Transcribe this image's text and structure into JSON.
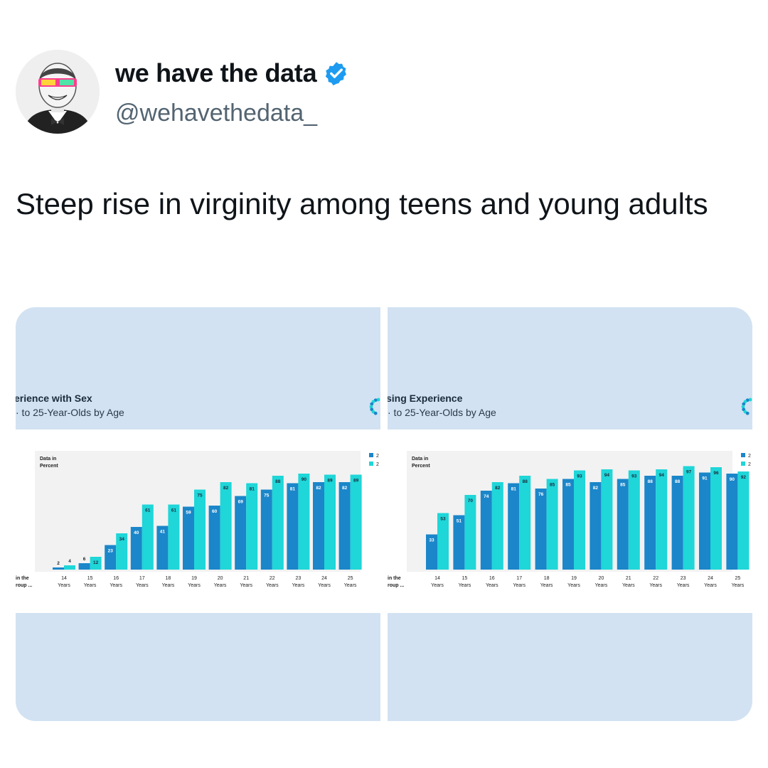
{
  "tweet": {
    "display_name": "we have the data",
    "handle": "@wehavethedata_",
    "verified_icon": "verified-badge-icon",
    "text": "Steep rise in virginity among teens and young adults"
  },
  "colors": {
    "series_dark": "#1b86c9",
    "series_light": "#1fd6d8",
    "panel_bg": "#d2e2f2",
    "chart_bg": "#f2f2f2",
    "verified": "#1d9bf0"
  },
  "chart_data": [
    {
      "type": "bar",
      "title": "erience with Sex",
      "subtitle": "to 25-Year-Olds by Age",
      "ylabel_line1": "Data in",
      "ylabel_line2": "Percent",
      "row_label_line1": "in the",
      "row_label_line2": "roup ...",
      "legend_labels": [
        "2",
        "2"
      ],
      "ylim": [
        0,
        100
      ],
      "categories": [
        "14",
        "15",
        "16",
        "17",
        "18",
        "19",
        "20",
        "21",
        "22",
        "23",
        "24",
        "25"
      ],
      "category_sub": "Years",
      "series": [
        {
          "values": [
            2,
            6,
            23,
            40,
            41,
            59,
            60,
            69,
            75,
            81,
            82,
            82
          ]
        },
        {
          "values": [
            4,
            12,
            34,
            61,
            61,
            75,
            82,
            81,
            88,
            90,
            89,
            89
          ]
        }
      ]
    },
    {
      "type": "bar",
      "title": "sing Experience",
      "subtitle": "to 25-Year-Olds by Age",
      "ylabel_line1": "Data in",
      "ylabel_line2": "Percent",
      "row_label_line1": "in the",
      "row_label_line2": "roup ...",
      "legend_labels": [
        "2",
        "2"
      ],
      "ylim": [
        0,
        100
      ],
      "categories": [
        "14",
        "15",
        "16",
        "17",
        "18",
        "19",
        "20",
        "21",
        "22",
        "23",
        "24",
        "25"
      ],
      "category_sub": "Years",
      "series": [
        {
          "values": [
            33,
            51,
            74,
            81,
            76,
            85,
            82,
            85,
            88,
            88,
            91,
            90
          ]
        },
        {
          "values": [
            53,
            70,
            82,
            88,
            85,
            93,
            94,
            93,
            94,
            97,
            96,
            92
          ]
        }
      ]
    }
  ]
}
